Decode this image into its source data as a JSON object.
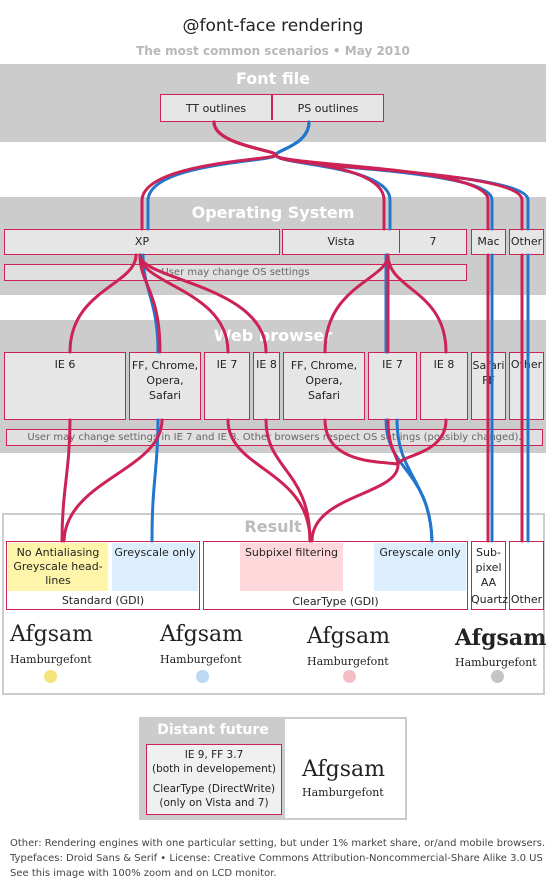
{
  "header": {
    "title": "@font-face rendering",
    "subtitle": "The most common scenarios • May 2010"
  },
  "bands": {
    "font_file": "Font file",
    "operating_system": "Operating System",
    "web_browser": "Web browser"
  },
  "font_file": {
    "tt": "TT outlines",
    "ps": "PS outlines"
  },
  "os": {
    "xp": "XP",
    "vista": "Vista",
    "seven": "7",
    "mac": "Mac",
    "other": "Other",
    "note": "User may change OS settings"
  },
  "browsers": {
    "ie6": "IE 6",
    "ff_xp_1": "FF, Chrome,",
    "ff_xp_2": "Opera,",
    "ff_xp_3": "Safari",
    "ie7_xp": "IE 7",
    "ie8_xp": "IE 8",
    "ff_v_1": "FF, Chrome,",
    "ff_v_2": "Opera,",
    "ff_v_3": "Safari",
    "ie7_v": "IE 7",
    "ie8_v": "IE 8",
    "safari": "Safari",
    "ff": "FF",
    "other": "Other",
    "note": "User may change settings in IE 7 and IE 8. Other browsers respect OS settings (possibly changed)."
  },
  "result": {
    "title": "Result",
    "no_aa_1": "No Antialiasing",
    "no_aa_2": "Greyscale head-",
    "no_aa_3": "lines",
    "grey_std": "Greyscale only",
    "std_label": "Standard (GDI)",
    "subpixel": "Subpixel filtering",
    "grey_ct": "Greyscale only",
    "ct_label": "ClearType (GDI)",
    "mac_1": "Sub-",
    "mac_2": "pixel",
    "mac_3": "AA",
    "quartz": "Quartz",
    "other": "Other",
    "sample_big": "Afgsam",
    "sample_small": "Hamburgefont"
  },
  "future": {
    "title": "Distant future",
    "line1": "IE 9, FF 3.7",
    "line2": "(both in developement)",
    "line3": "ClearType (DirectWrite)",
    "line4": "(only on Vista and 7)",
    "sample_big": "Afgsam",
    "sample_small": "Hamburgefont"
  },
  "footer": {
    "line1": "Other: Rendering engines with one particular setting, but under 1% market share, or/and mobile browsers.",
    "line2": "Typefaces: Droid Sans & Serif • License: Creative Commons Attribution-Noncommercial-Share Alike 3.0 US",
    "line3": "See this image with 100% zoom and on LCD monitor."
  },
  "colors": {
    "tt_line": "#cc2255",
    "ps_line": "#2277cc",
    "yellow": "#fff5aa",
    "blue": "#ddeeff",
    "pink": "#ffd8dc",
    "dot_yellow": "#f4e27a",
    "dot_blue": "#bcd8f2",
    "dot_pink": "#f2c0c4",
    "dot_grey": "#c4c4c4"
  }
}
